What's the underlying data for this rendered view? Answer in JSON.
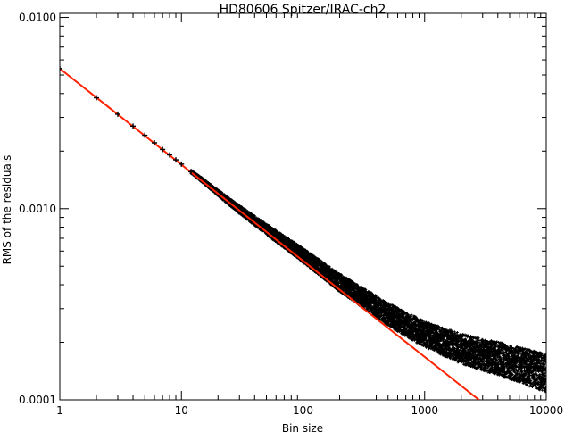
{
  "chart_data": {
    "type": "scatter",
    "title": "HD80606 Spitzer/IRAC-ch2",
    "xlabel": "Bin size",
    "ylabel": "RMS of the residuals",
    "xscale": "log",
    "yscale": "log",
    "xlim": [
      1,
      10000
    ],
    "ylim": [
      0.0001,
      0.0105
    ],
    "xticks": [
      {
        "value": 1,
        "label": "1"
      },
      {
        "value": 10,
        "label": "10"
      },
      {
        "value": 100,
        "label": "100"
      },
      {
        "value": 1000,
        "label": "1000"
      },
      {
        "value": 10000,
        "label": "10000"
      }
    ],
    "yticks": [
      {
        "value": 0.0001,
        "label": "0.0001"
      },
      {
        "value": 0.001,
        "label": "0.0010"
      },
      {
        "value": 0.01,
        "label": "0.0100"
      }
    ],
    "grid": false,
    "legend": "none",
    "series": [
      {
        "style": "black plus markers",
        "color": "#000000",
        "x": [
          1,
          2,
          3,
          4,
          5,
          6,
          7,
          8,
          9,
          10,
          12,
          15,
          20,
          30,
          50,
          100,
          200,
          500,
          1000,
          2000,
          5000,
          10000
        ],
        "y": [
          0.0054,
          0.0038,
          0.00312,
          0.0027,
          0.00242,
          0.00221,
          0.00204,
          0.00191,
          0.0018,
          0.00171,
          0.00156,
          0.0014,
          0.00121,
          0.00099,
          0.00078,
          0.00057,
          0.00041,
          0.00028,
          0.00022,
          0.000185,
          0.000158,
          0.000138
        ]
      },
      {
        "style": "red line",
        "color": "#ff2200",
        "x": [
          1,
          2800
        ],
        "y": [
          0.0054,
          0.0001
        ]
      }
    ]
  }
}
